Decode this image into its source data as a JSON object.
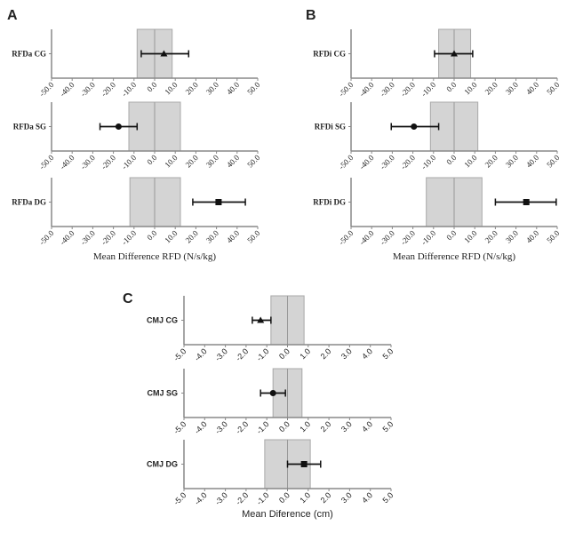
{
  "chart_data": [
    {
      "type": "forest",
      "panel_label": "A",
      "xlabel": "Mean Difference RFD (N/s/kg)",
      "xlim": [
        -50,
        50
      ],
      "tick_labels": [
        "-50.0",
        "-40.0",
        "-30.0",
        "-20.0",
        "-10.0",
        "0.0",
        "10.0",
        "20.0",
        "30.0",
        "40.0",
        "50.0"
      ],
      "tick_values": [
        -50,
        -40,
        -30,
        -20,
        -10,
        0,
        10,
        20,
        30,
        40,
        50
      ],
      "rows": [
        {
          "label": "RFDa CG",
          "marker": "triangle",
          "mean": 4.5,
          "ci": [
            -6.5,
            16.5
          ],
          "band": [
            -8.5,
            8.5
          ]
        },
        {
          "label": "RFDa SG",
          "marker": "circle",
          "mean": -17.5,
          "ci": [
            -26.5,
            -8.5
          ],
          "band": [
            -12.5,
            12.5
          ]
        },
        {
          "label": "RFDa DG",
          "marker": "square",
          "mean": 31,
          "ci": [
            18.5,
            44
          ],
          "band": [
            -12,
            12.5
          ]
        }
      ]
    },
    {
      "type": "forest",
      "panel_label": "B",
      "xlabel": "Mean Difference RFD (N/s/kg)",
      "xlim": [
        -50,
        50
      ],
      "tick_labels": [
        "-50.0",
        "-40.0",
        "-30.0",
        "-20.0",
        "-10.0",
        "0.0",
        "10.0",
        "20.0",
        "30.0",
        "40.0",
        "50.0"
      ],
      "tick_values": [
        -50,
        -40,
        -30,
        -20,
        -10,
        0,
        10,
        20,
        30,
        40,
        50
      ],
      "rows": [
        {
          "label": "RFDi CG",
          "marker": "triangle",
          "mean": 0,
          "ci": [
            -9.5,
            9
          ],
          "band": [
            -7.5,
            8
          ]
        },
        {
          "label": "RFDi SG",
          "marker": "circle",
          "mean": -19.5,
          "ci": [
            -30.5,
            -7.5
          ],
          "band": [
            -11.5,
            11.5
          ]
        },
        {
          "label": "RFDi DG",
          "marker": "square",
          "mean": 35,
          "ci": [
            20,
            49.5
          ],
          "band": [
            -13.5,
            13.5
          ]
        }
      ]
    },
    {
      "type": "forest",
      "panel_label": "C",
      "xlabel": "Mean Diference (cm)",
      "xlim": [
        -5,
        5
      ],
      "tick_labels": [
        "-5.0",
        "-4.0",
        "-3.0",
        "-2.0",
        "-1.0",
        "0.0",
        "1.0",
        "2.0",
        "3.0",
        "4.0",
        "5.0"
      ],
      "tick_values": [
        -5,
        -4,
        -3,
        -2,
        -1,
        0,
        1,
        2,
        3,
        4,
        5
      ],
      "rows": [
        {
          "label": "CMJ CG",
          "marker": "triangle",
          "mean": -1.3,
          "ci": [
            -1.7,
            -0.8
          ],
          "band": [
            -0.8,
            0.8
          ]
        },
        {
          "label": "CMJ SG",
          "marker": "circle",
          "mean": -0.7,
          "ci": [
            -1.3,
            -0.1
          ],
          "band": [
            -0.7,
            0.7
          ]
        },
        {
          "label": "CMJ DG",
          "marker": "square",
          "mean": 0.8,
          "ci": [
            0,
            1.6
          ],
          "band": [
            -1.1,
            1.1
          ]
        }
      ]
    }
  ]
}
